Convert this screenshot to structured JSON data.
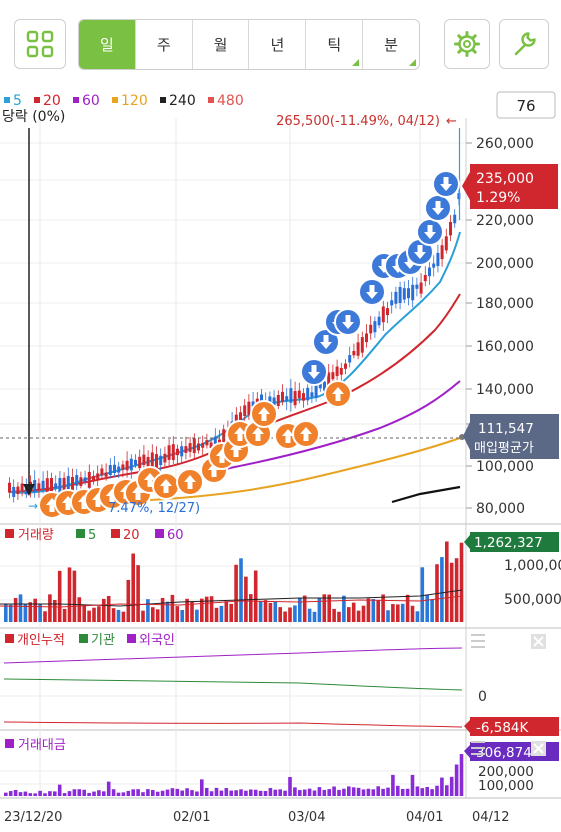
{
  "toolbar": {
    "periods": [
      {
        "label": "일",
        "active": true,
        "has_menu": false
      },
      {
        "label": "주",
        "active": false,
        "has_menu": false
      },
      {
        "label": "월",
        "active": false,
        "has_menu": false
      },
      {
        "label": "년",
        "active": false,
        "has_menu": false
      },
      {
        "label": "틱",
        "active": false,
        "has_menu": true
      },
      {
        "label": "분",
        "active": false,
        "has_menu": true
      }
    ],
    "left_icon": "grid-icon",
    "settings_icon": "gear-icon",
    "tool_icon": "wrench-icon",
    "accent": "#79c043"
  },
  "legend": {
    "moving_averages": [
      {
        "period": "5",
        "color": "#2a9fd8"
      },
      {
        "period": "20",
        "color": "#d0262d"
      },
      {
        "period": "60",
        "color": "#a020c8"
      },
      {
        "period": "120",
        "color": "#e8a320"
      },
      {
        "period": "240",
        "color": "#222222"
      },
      {
        "period": "480",
        "color": "#e0554f"
      }
    ],
    "count_box": "76"
  },
  "price_chart": {
    "drop_label": "당락 (0%)",
    "high_annotation": "265,500(-11.49%, 04/12)",
    "low_annotation": "7.47%, 12/27)",
    "current_price": "235,000",
    "current_change": "1.29%",
    "avg_price": "111,547",
    "avg_price_label": "매입평균가",
    "y_ticks": [
      "260,000",
      "240,000",
      "220,000",
      "200,000",
      "180,000",
      "160,000",
      "140,000",
      "120,000",
      "100,000",
      "80,000"
    ],
    "up_color": "#d0262d",
    "down_color": "#2a6fd8"
  },
  "volume_chart": {
    "title": "거래량",
    "ma_labels": [
      {
        "period": "5",
        "color": "#2d8a3a"
      },
      {
        "period": "20",
        "color": "#d0262d"
      },
      {
        "period": "60",
        "color": "#a020c8"
      }
    ],
    "current_value": "1,262,327",
    "y_ticks": [
      "1,000,000",
      "500,000"
    ]
  },
  "investor_chart": {
    "series": [
      {
        "name": "개인누적",
        "color": "#d0262d"
      },
      {
        "name": "기관",
        "color": "#2d8a3a"
      },
      {
        "name": "외국인",
        "color": "#a020c8"
      }
    ],
    "current_value": "-6,584K",
    "y_tick": "0"
  },
  "amount_chart": {
    "title": "거래대금",
    "current_value": "306,874",
    "y_ticks": [
      "200,000",
      "100,000"
    ]
  },
  "x_axis": {
    "labels": [
      "23/12/20",
      "02/01",
      "03/04",
      "04/01",
      "04/12"
    ]
  },
  "chart_data": [
    {
      "type": "candlestick",
      "y_ticks": [
        260000,
        240000,
        220000,
        200000,
        180000,
        160000,
        140000,
        120000,
        100000,
        80000
      ],
      "x_labels": [
        "23/12/20",
        "02/01",
        "03/04",
        "04/01",
        "04/12"
      ],
      "last_close": 235000,
      "last_change_pct": 1.29,
      "period_high": 265500,
      "average_purchase_price": 111547,
      "series": [
        {
          "name": "5",
          "color": "#2a9fd8"
        },
        {
          "name": "20",
          "color": "#d0262d"
        },
        {
          "name": "60",
          "color": "#a020c8"
        },
        {
          "name": "120",
          "color": "#e8a320"
        },
        {
          "name": "240",
          "color": "#222222"
        },
        {
          "name": "480",
          "color": "#e0554f"
        }
      ]
    },
    {
      "type": "bar",
      "title": "거래량",
      "y_ticks": [
        1000000,
        500000
      ],
      "last_value": 1262327
    },
    {
      "type": "line",
      "series": [
        {
          "name": "개인누적"
        },
        {
          "name": "기관"
        },
        {
          "name": "외국인"
        }
      ],
      "last_value_label": "-6,584K"
    },
    {
      "type": "bar",
      "title": "거래대금",
      "y_ticks": [
        200000,
        100000
      ],
      "last_value": 306874
    }
  ]
}
